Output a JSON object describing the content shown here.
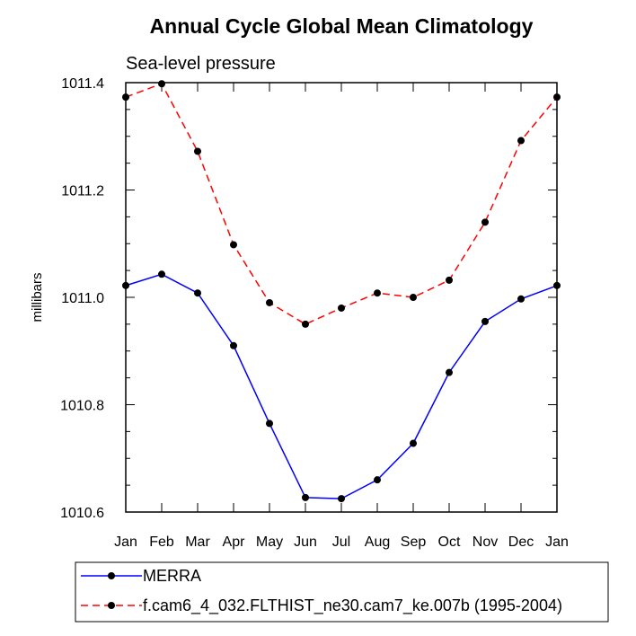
{
  "chart_data": {
    "type": "line",
    "title": "Annual Cycle Global Mean Climatology",
    "subtitle": "Sea-level pressure",
    "ylabel": "millibars",
    "xlabel": "",
    "categories": [
      "Jan",
      "Feb",
      "Mar",
      "Apr",
      "May",
      "Jun",
      "Jul",
      "Aug",
      "Sep",
      "Oct",
      "Nov",
      "Dec",
      "Jan"
    ],
    "ylim": [
      1010.6,
      1011.4
    ],
    "yticks": [
      1010.6,
      1010.8,
      1011.0,
      1011.2,
      1011.4
    ],
    "ytick_labels": [
      "1010.6",
      "1010.8",
      "1011.0",
      "1011.2",
      "1011.4"
    ],
    "grid": false,
    "legend_position": "bottom",
    "series": [
      {
        "name": "MERRA",
        "color": "#0000ff",
        "dash": "solid",
        "values": [
          1011.022,
          1011.043,
          1011.008,
          1010.91,
          1010.765,
          1010.627,
          1010.625,
          1010.66,
          1010.728,
          1010.86,
          1010.955,
          1010.997,
          1011.022
        ]
      },
      {
        "name": "f.cam6_4_032.FLTHIST_ne30.cam7_ke.007b (1995-2004)",
        "color": "#ff0000",
        "dash": "dashed",
        "values": [
          1011.373,
          1011.398,
          1011.272,
          1011.098,
          1010.99,
          1010.95,
          1010.98,
          1011.008,
          1011.0,
          1011.032,
          1011.14,
          1011.292,
          1011.373
        ]
      }
    ]
  }
}
